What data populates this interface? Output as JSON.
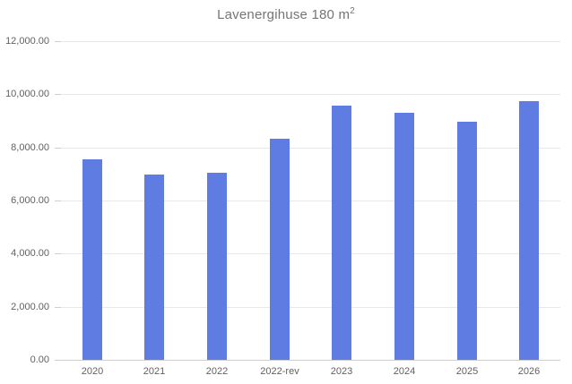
{
  "title": {
    "text": "Lavenergihuse 180 m",
    "superscript": "2"
  },
  "colors": {
    "bar": "#5e7ce2",
    "gridline": "#e8e8e8",
    "axis_line": "#cfcfcf",
    "tick": "#cfcfcf",
    "axis_label": "#616161",
    "title": "#757575",
    "background": "#ffffff"
  },
  "chart_data": {
    "type": "bar",
    "title": "Lavenergihuse 180 m²",
    "categories": [
      "2020",
      "2021",
      "2022",
      "2022-rev",
      "2023",
      "2024",
      "2025",
      "2026"
    ],
    "values": [
      7560,
      6980,
      7050,
      8320,
      9570,
      9290,
      8950,
      9730
    ],
    "xlabel": "",
    "ylabel": "",
    "ylim": [
      0,
      12000
    ],
    "ytick_step": 2000,
    "ytick_labels": [
      "0.00",
      "2,000.00",
      "4,000.00",
      "6,000.00",
      "8,000.00",
      "10,000.00",
      "12,000.00"
    ],
    "grid": true,
    "legend": "none"
  }
}
